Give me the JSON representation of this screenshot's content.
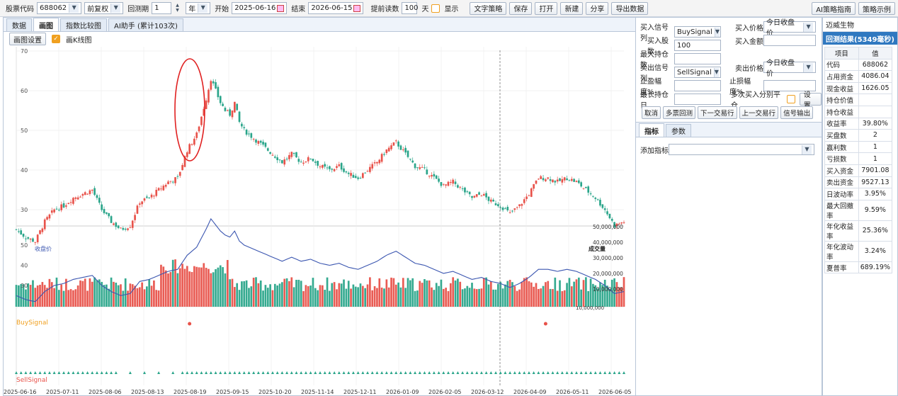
{
  "toolbar": {
    "stock_code_label": "股票代码",
    "stock_code": "688062",
    "adjust": "前复权",
    "period_label": "回测期",
    "period_value": "1",
    "period_unit": "年",
    "start_label": "开始",
    "start_date": "2025-06-16",
    "end_label": "结束",
    "end_date": "2026-06-15",
    "preload_label": "提前读数",
    "preload_value": "100",
    "preload_unit": "天",
    "show_label": "显示",
    "buttons": [
      "文字策略",
      "保存",
      "打开",
      "新建",
      "分享",
      "导出数据"
    ],
    "right_buttons": [
      "AI策略指南",
      "策略示例"
    ]
  },
  "tabs": [
    "数据",
    "画图",
    "指数比较图",
    "AI助手 (累计103次)"
  ],
  "active_tab": 1,
  "chart_settings_label": "画图设置",
  "kline_label": "画K线图",
  "chart_labels": {
    "close": "收盘价",
    "volume": "成交量",
    "buy_signal": "BuySignal",
    "sell_signal": "SellSignal"
  },
  "chart_data": {
    "type": "candlestick",
    "price_ticks": [
      30,
      40,
      50,
      60,
      70
    ],
    "close_ticks": [
      30,
      40,
      50
    ],
    "volume_ticks": [
      "10,000,000",
      "20,000,000",
      "30,000,000",
      "40,000,000",
      "50,000,000"
    ],
    "x_ticks": [
      "2025-06-16",
      "2025-07-11",
      "2025-08-06",
      "2025-08-13",
      "2025-08-19",
      "2025-09-15",
      "2025-10-20",
      "2025-11-14",
      "2025-12-11",
      "2026-01-09",
      "2026-02-05",
      "2026-03-12",
      "2026-04-09",
      "2026-05-11",
      "2026-06-05"
    ],
    "close_path": [
      [
        0,
        25
      ],
      [
        4,
        23
      ],
      [
        8,
        22
      ],
      [
        12,
        27
      ],
      [
        16,
        30
      ],
      [
        20,
        31
      ],
      [
        24,
        33
      ],
      [
        28,
        34
      ],
      [
        32,
        35
      ],
      [
        36,
        30
      ],
      [
        40,
        27
      ],
      [
        44,
        25
      ],
      [
        48,
        26
      ],
      [
        52,
        32
      ],
      [
        56,
        33
      ],
      [
        60,
        35
      ],
      [
        64,
        37
      ],
      [
        68,
        38
      ],
      [
        72,
        45
      ],
      [
        76,
        49
      ],
      [
        80,
        58
      ],
      [
        82,
        63
      ],
      [
        84,
        60
      ],
      [
        86,
        57
      ],
      [
        88,
        55
      ],
      [
        90,
        54
      ],
      [
        92,
        57
      ],
      [
        94,
        52
      ],
      [
        96,
        50
      ],
      [
        100,
        48
      ],
      [
        104,
        46
      ],
      [
        108,
        44
      ],
      [
        112,
        42
      ],
      [
        116,
        44
      ],
      [
        120,
        42
      ],
      [
        124,
        43
      ],
      [
        128,
        41
      ],
      [
        132,
        40
      ],
      [
        136,
        41
      ],
      [
        140,
        39
      ],
      [
        144,
        38
      ],
      [
        148,
        40
      ],
      [
        152,
        42
      ],
      [
        156,
        45
      ],
      [
        160,
        47
      ],
      [
        164,
        44
      ],
      [
        168,
        41
      ],
      [
        172,
        40
      ],
      [
        176,
        38
      ],
      [
        180,
        36
      ],
      [
        184,
        37
      ],
      [
        188,
        35
      ],
      [
        192,
        33
      ],
      [
        196,
        34
      ],
      [
        200,
        32
      ],
      [
        204,
        31
      ],
      [
        208,
        29
      ],
      [
        212,
        31
      ],
      [
        216,
        34
      ],
      [
        220,
        38
      ],
      [
        224,
        38
      ],
      [
        228,
        37
      ],
      [
        232,
        38
      ],
      [
        236,
        37
      ],
      [
        240,
        35
      ],
      [
        244,
        33
      ],
      [
        248,
        30
      ],
      [
        252,
        26
      ],
      [
        256,
        27
      ]
    ],
    "buy_signals": [
      73,
      223
    ],
    "vol_marker_value": "10,000,000"
  },
  "form": {
    "buy_signal_label": "买入信号列",
    "buy_signal_value": "BuySignal",
    "buy_price_label": "买入价格",
    "buy_price_value": "今日收盘价",
    "buy_shares_label": "买入股数",
    "buy_shares_value": "100",
    "buy_amount_label": "买入金额",
    "buy_amount_value": "",
    "max_hold_label": "最大持仓数",
    "max_hold_value": "",
    "sell_signal_label": "卖出信号列",
    "sell_signal_value": "SellSignal",
    "sell_price_label": "卖出价格",
    "sell_price_value": "今日收盘价",
    "stop_profit_label": "止盈幅度%",
    "stop_profit_value": "",
    "stop_loss_label": "止损幅度%",
    "stop_loss_value": "",
    "max_days_label": "最长持仓日",
    "max_days_value": "",
    "multi_buy_label": "多次买入分别平仓",
    "settings_button": "设置",
    "actions": [
      "取消",
      "多票回测",
      "下一交易行",
      "上一交易行",
      "信号输出"
    ],
    "subtabs": [
      "指标",
      "参数"
    ],
    "add_indicator_label": "添加指标"
  },
  "results": {
    "company": "迈威生物",
    "header": "回测结果(5349毫秒)",
    "col_item": "项目",
    "col_value": "值",
    "rows": [
      [
        "代码",
        "688062"
      ],
      [
        "占用资金",
        "4086.04"
      ],
      [
        "现金收益",
        "1626.05"
      ],
      [
        "持仓价值",
        ""
      ],
      [
        "持仓收益",
        ""
      ],
      [
        "收益率",
        "39.80%"
      ],
      [
        "买盘数",
        "2"
      ],
      [
        "赢利数",
        "1"
      ],
      [
        "亏损数",
        "1"
      ],
      [
        "买入资金",
        "7901.08"
      ],
      [
        "卖出资金",
        "9527.13"
      ],
      [
        "日波动率",
        "3.95%"
      ],
      [
        "最大回撤率",
        "9.59%"
      ],
      [
        "年化收益率",
        "25.36%"
      ],
      [
        "年化波动率",
        "3.24%"
      ],
      [
        "夏普率",
        "689.19%"
      ]
    ]
  },
  "colors": {
    "up": "#e8524a",
    "down": "#2aa58a",
    "close_line": "#3b56b0",
    "accent": "#2f78c0",
    "signal": "#f0a020"
  }
}
